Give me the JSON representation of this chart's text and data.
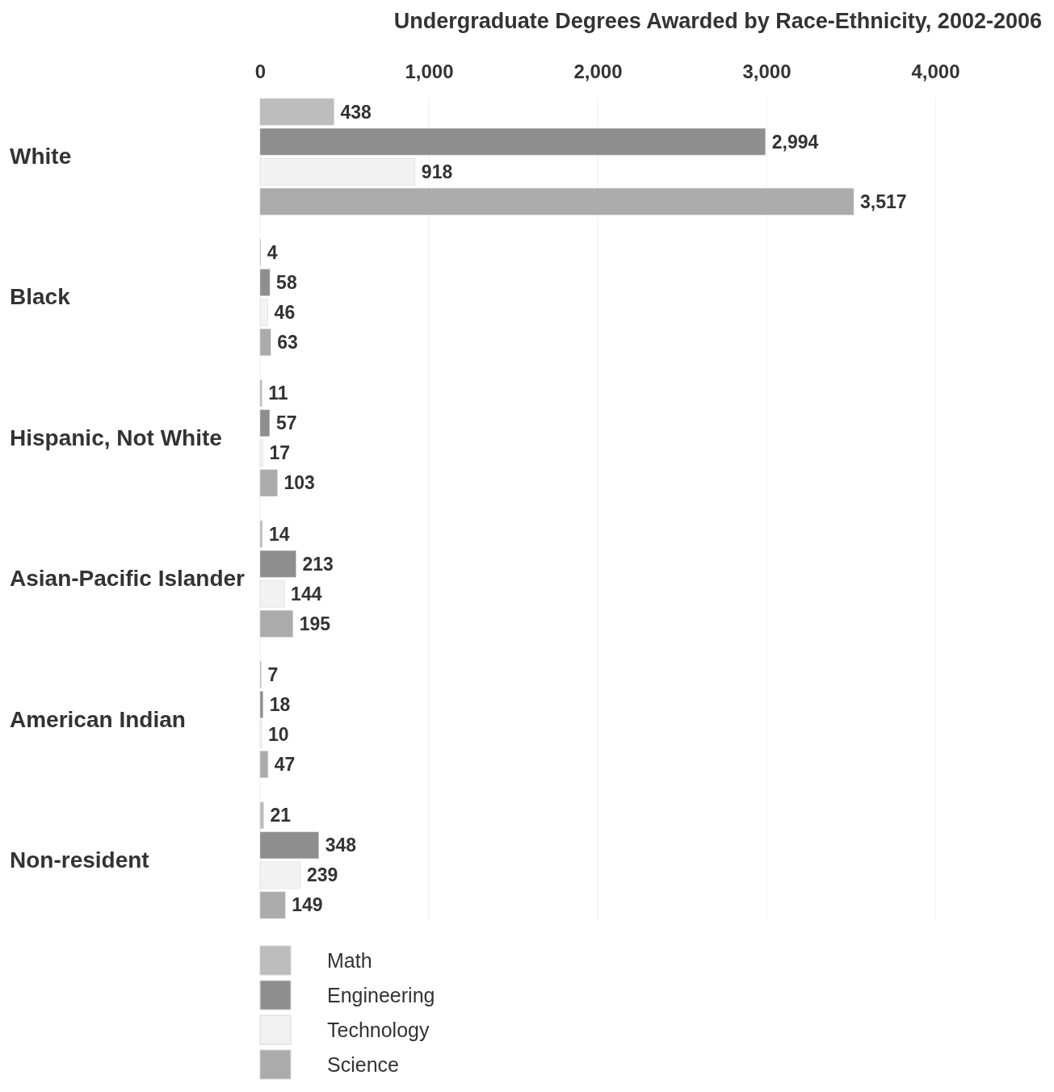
{
  "chart_data": {
    "type": "bar",
    "orientation": "horizontal",
    "title": "Undergraduate Degrees Awarded by Race-Ethnicity, 2002-2006",
    "categories": [
      "White",
      "Black",
      "Hispanic, Not White",
      "Asian-Pacific Islander",
      "American Indian",
      "Non-resident"
    ],
    "series": [
      {
        "name": "Math",
        "color": "#bdbdbd",
        "values": [
          438,
          4,
          11,
          14,
          7,
          21
        ],
        "value_labels": [
          "438",
          "4",
          "11",
          "14",
          "7",
          "21"
        ]
      },
      {
        "name": "Engineering",
        "color": "#8e8e8e",
        "values": [
          2994,
          58,
          57,
          213,
          18,
          348
        ],
        "value_labels": [
          "2,994",
          "58",
          "57",
          "213",
          "18",
          "348"
        ]
      },
      {
        "name": "Technology",
        "color": "#f2f2f2",
        "values": [
          918,
          46,
          17,
          144,
          10,
          239
        ],
        "value_labels": [
          "918",
          "46",
          "17",
          "144",
          "10",
          "239"
        ]
      },
      {
        "name": "Science",
        "color": "#ababab",
        "values": [
          3517,
          63,
          103,
          195,
          47,
          149
        ],
        "value_labels": [
          "3,517",
          "63",
          "103",
          "195",
          "47",
          "149"
        ]
      }
    ],
    "xlim": [
      0,
      4000
    ],
    "xticks": [
      0,
      {
        "value": 1000,
        "label": "1,000"
      },
      {
        "value": 2000,
        "label": "2,000"
      },
      {
        "value": 3000,
        "label": "3,000"
      },
      {
        "value": 4000,
        "label": "4,000"
      }
    ],
    "grid": "x",
    "legend": "bottom"
  }
}
